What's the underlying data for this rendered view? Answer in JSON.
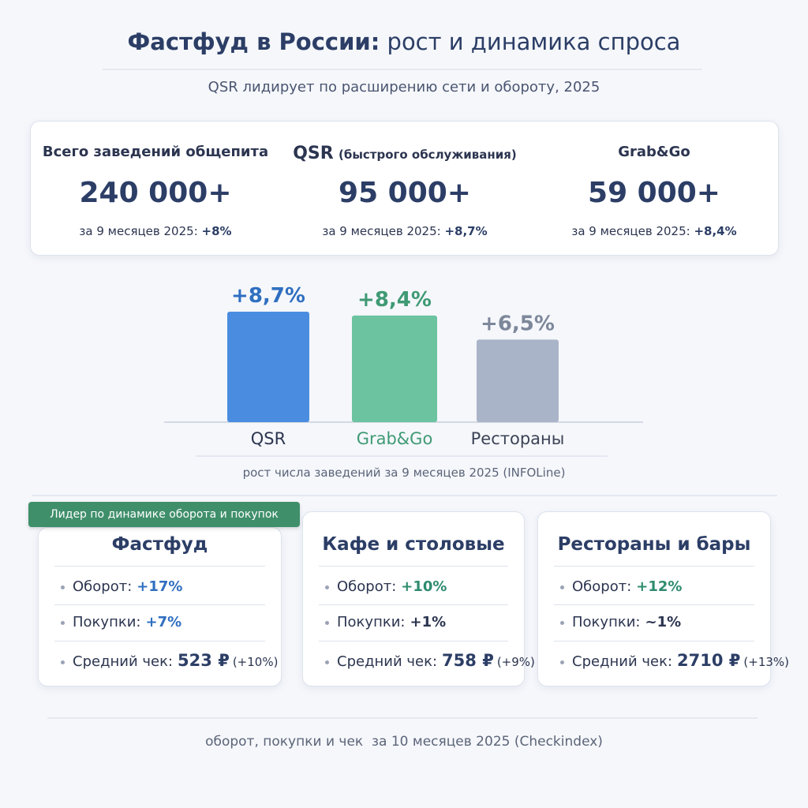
{
  "header": {
    "title_bold": "Фастфуд в России:",
    "title_rest": "рост и динамика спроса",
    "subtitle": "QSR лидирует по расширению сети и обороту, 2025"
  },
  "stats": [
    {
      "label": "Всего заведений общепита",
      "value": "240 000+",
      "period": "за 9 месяцев 2025:",
      "change": "+8%"
    },
    {
      "label": "QSR",
      "label_note": "(быстрого обслуживания)",
      "value": "95 000+",
      "period": "за 9 месяцев 2025:",
      "change": "+8,7%"
    },
    {
      "label": "Grab&Go",
      "value": "59 000+",
      "period": "за 9 месяцев 2025:",
      "change": "+8,4%"
    }
  ],
  "chart_data": {
    "type": "bar",
    "categories": [
      "QSR",
      "Grab&Go",
      "Рестораны"
    ],
    "values": [
      8.7,
      8.4,
      6.5
    ],
    "value_labels": [
      "+8,7%",
      "+8,4%",
      "+6,5%"
    ],
    "colors": [
      "#4a8de0",
      "#6cc3a0",
      "#aab4c8"
    ],
    "label_colors": [
      "#2f6fc0",
      "#3f9a74",
      "#7d879a"
    ],
    "category_colors": [
      "#2c3550",
      "#3f9a74",
      "#3c4356"
    ],
    "caption": "рост числа заведений за 9 месяцев 2025 (INFOLine)"
  },
  "segments": {
    "badge": "Лидер по динамике оборота и покупок",
    "cards": [
      {
        "title": "Фастфуд",
        "rows": [
          {
            "label": "Оборот:",
            "value": "+17%"
          },
          {
            "label": "Покупки:",
            "value": "+7%"
          },
          {
            "label": "Средний чек:",
            "value": "523 ₽",
            "note": "(+10%)"
          }
        ]
      },
      {
        "title": "Кафе и столовые",
        "rows": [
          {
            "label": "Оборот:",
            "value": "+10%"
          },
          {
            "label": "Покупки:",
            "value": "+1%"
          },
          {
            "label": "Средний чек:",
            "value": "758 ₽",
            "note": "(+9%)"
          }
        ]
      },
      {
        "title": "Рестораны и бары",
        "rows": [
          {
            "label": "Оборот:",
            "value": "+12%"
          },
          {
            "label": "Покупки:",
            "value": "~1%"
          },
          {
            "label": "Средний чек:",
            "value": "2710 ₽",
            "note": "(+13%)"
          }
        ]
      }
    ],
    "caption": "оборот, покупки и чек  за 10 месяцев 2025 (Checkindex)"
  }
}
